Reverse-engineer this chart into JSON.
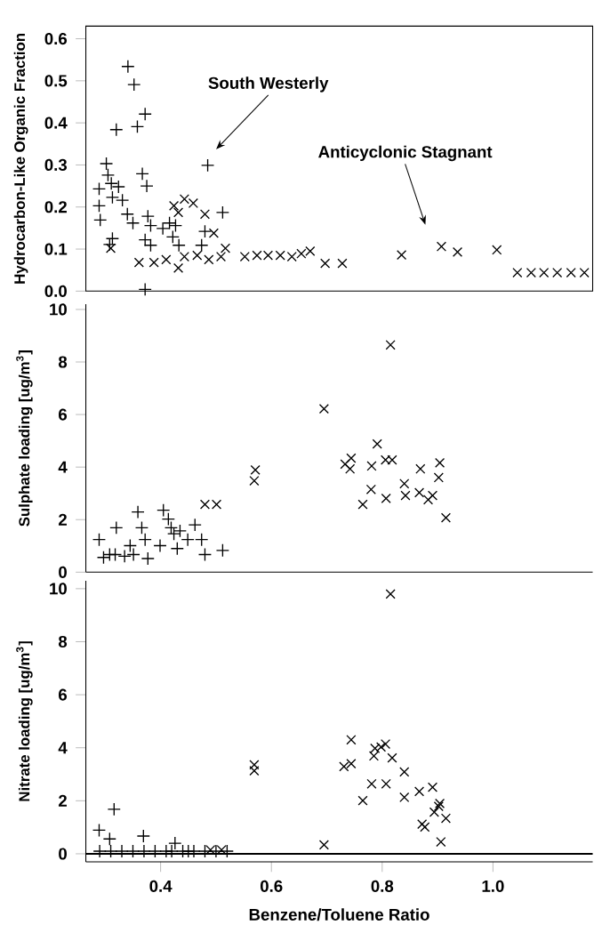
{
  "chart_data": [
    {
      "type": "scatter",
      "ylabel": "Hydrocarbon-Like Organic Fraction",
      "xlim": [
        0.265,
        1.18
      ],
      "ylim": [
        0,
        0.63
      ],
      "yticks": [
        {
          "value": 0,
          "label": "0.0"
        },
        0.1,
        0.2,
        0.3,
        0.4,
        0.5,
        0.6
      ],
      "tick_labels": "y",
      "grid": false,
      "annotations": [
        "South Westerly",
        "Anticyclonic Stagnant"
      ],
      "series": [
        {
          "color": "#000000",
          "marker": "plus",
          "x": [
            0.341,
            0.352,
            0.32,
            0.358,
            0.372,
            0.485,
            0.302,
            0.305,
            0.289,
            0.311,
            0.324,
            0.313,
            0.331,
            0.289,
            0.291,
            0.367,
            0.375,
            0.34,
            0.35,
            0.377,
            0.313,
            0.308,
            0.372,
            0.382,
            0.404,
            0.416,
            0.427,
            0.422,
            0.433,
            0.48,
            0.474,
            0.512,
            0.372,
            0.382
          ],
          "values": [
            0.534,
            0.491,
            0.384,
            0.391,
            0.421,
            0.299,
            0.303,
            0.276,
            0.243,
            0.256,
            0.248,
            0.223,
            0.216,
            0.203,
            0.169,
            0.279,
            0.25,
            0.183,
            0.162,
            0.178,
            0.125,
            0.111,
            0.122,
            0.109,
            0.149,
            0.162,
            0.156,
            0.129,
            0.109,
            0.142,
            0.109,
            0.187,
            0.004,
            0.156
          ]
        },
        {
          "color": "#000000",
          "marker": "cross",
          "x": [
            0.31,
            0.424,
            0.443,
            0.459,
            0.48,
            0.496,
            0.517,
            0.432,
            0.361,
            0.388,
            0.41,
            0.432,
            0.443,
            0.466,
            0.487,
            0.509,
            0.552,
            0.574,
            0.594,
            0.616,
            0.637,
            0.654,
            0.67,
            0.697,
            0.728,
            0.835,
            0.907,
            0.936,
            1.007,
            1.044,
            1.069,
            1.092,
            1.116,
            1.141,
            1.165
          ],
          "values": [
            0.102,
            0.203,
            0.219,
            0.209,
            0.183,
            0.138,
            0.102,
            0.187,
            0.068,
            0.068,
            0.075,
            0.055,
            0.082,
            0.085,
            0.075,
            0.082,
            0.082,
            0.085,
            0.085,
            0.085,
            0.082,
            0.089,
            0.095,
            0.066,
            0.066,
            0.086,
            0.106,
            0.093,
            0.098,
            0.044,
            0.044,
            0.044,
            0.044,
            0.044,
            0.044
          ]
        }
      ]
    },
    {
      "type": "scatter",
      "ylabel": "Sulphate loading [ug/m$^{3}$]",
      "xlim": [
        0.265,
        1.18
      ],
      "ylim": [
        0,
        10.2
      ],
      "yticks": [
        0,
        2,
        4,
        6,
        8,
        10
      ],
      "tick_labels": "y",
      "grid": false,
      "series": [
        {
          "color": "#000000",
          "marker": "plus",
          "x": [
            0.289,
            0.297,
            0.318,
            0.335,
            0.351,
            0.32,
            0.359,
            0.366,
            0.372,
            0.377,
            0.405,
            0.414,
            0.419,
            0.424,
            0.435,
            0.43,
            0.449,
            0.462,
            0.474,
            0.48,
            0.512,
            0.399,
            0.345,
            0.308
          ],
          "values": [
            1.24,
            0.56,
            0.67,
            0.61,
            0.67,
            1.69,
            2.29,
            1.69,
            1.24,
            0.52,
            2.36,
            2.02,
            1.69,
            1.46,
            1.57,
            0.9,
            1.24,
            1.8,
            1.24,
            0.67,
            0.83,
            1.01,
            1.01,
            0.67
          ]
        },
        {
          "color": "#000000",
          "marker": "cross",
          "x": [
            0.695,
            0.815,
            0.571,
            0.569,
            0.48,
            0.501,
            0.733,
            0.744,
            0.742,
            0.781,
            0.791,
            0.806,
            0.818,
            0.765,
            0.78,
            0.807,
            0.84,
            0.842,
            0.869,
            0.867,
            0.883,
            0.891,
            0.904,
            0.902,
            0.915
          ],
          "values": [
            6.22,
            8.65,
            3.89,
            3.48,
            2.58,
            2.58,
            4.11,
            4.34,
            3.93,
            4.04,
            4.88,
            4.27,
            4.27,
            2.58,
            3.15,
            2.81,
            3.37,
            2.92,
            3.93,
            3.03,
            2.76,
            2.92,
            4.16,
            3.6,
            2.07
          ]
        }
      ]
    },
    {
      "type": "scatter",
      "xlabel": "Benzene/Toluene Ratio",
      "ylabel": "Nitrate loading [ug/m$^{3}$]",
      "xlim": [
        0.265,
        1.18
      ],
      "ylim": [
        -0.3,
        10.3
      ],
      "xticks": [
        {
          "value": 0.4,
          "label": "0.4"
        },
        {
          "value": 0.6,
          "label": "0.6"
        },
        {
          "value": 0.8,
          "label": "0.8"
        },
        {
          "value": 1.0,
          "label": "1.0"
        }
      ],
      "yticks": [
        0,
        2,
        4,
        6,
        8,
        10
      ],
      "grid": false,
      "ref_lines": [
        {
          "axis": "y",
          "value": 0,
          "color": "#000000"
        }
      ],
      "series": [
        {
          "color": "#000000",
          "marker": "plus",
          "x": [
            0.289,
            0.316,
            0.308,
            0.369,
            0.426,
            0.29,
            0.31,
            0.33,
            0.35,
            0.37,
            0.39,
            0.41,
            0.42,
            0.44,
            0.45,
            0.46,
            0.48,
            0.5,
            0.52
          ],
          "values": [
            0.89,
            1.68,
            0.56,
            0.67,
            0.4,
            0.1,
            0.1,
            0.1,
            0.1,
            0.1,
            0.1,
            0.1,
            0.1,
            0.1,
            0.1,
            0.1,
            0.1,
            0.1,
            0.1
          ]
        },
        {
          "color": "#000000",
          "marker": "cross",
          "x": [
            0.815,
            0.569,
            0.569,
            0.695,
            0.744,
            0.731,
            0.744,
            0.765,
            0.781,
            0.787,
            0.785,
            0.798,
            0.806,
            0.807,
            0.818,
            0.84,
            0.84,
            0.867,
            0.872,
            0.877,
            0.891,
            0.894,
            0.904,
            0.902,
            0.915,
            0.906,
            0.49,
            0.51
          ],
          "values": [
            9.8,
            3.36,
            3.13,
            0.34,
            4.3,
            3.29,
            3.4,
            2.01,
            2.64,
            3.98,
            3.69,
            4.03,
            4.14,
            2.64,
            3.62,
            3.09,
            2.13,
            2.35,
            1.12,
            1.01,
            2.51,
            1.57,
            1.9,
            1.79,
            1.34,
            0.45,
            0.15,
            0.15
          ]
        }
      ]
    }
  ]
}
